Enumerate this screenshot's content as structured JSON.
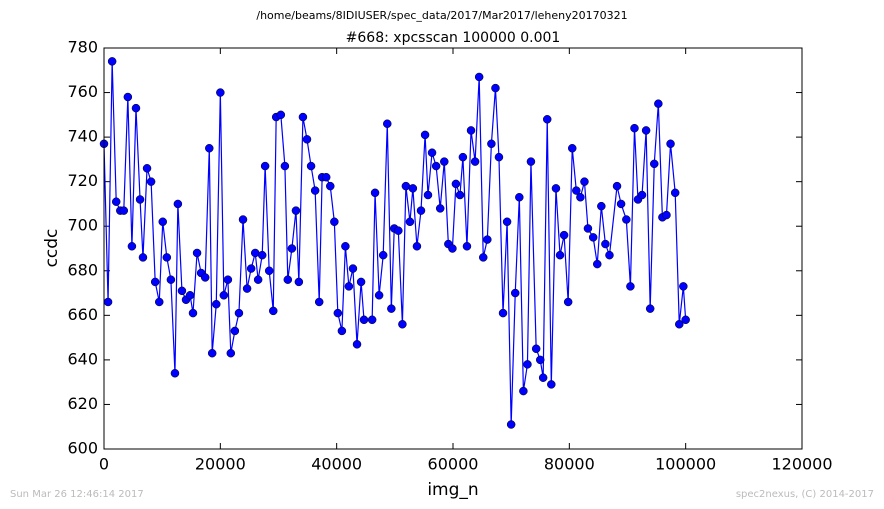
{
  "chart_data": {
    "type": "line",
    "suptitle": "/home/beams/8IDIUSER/spec_data/2017/Mar2017/leheny20170321",
    "title": "#668: xpcsscan 100000 0.001",
    "xlabel": "img_n",
    "ylabel": "ccdc",
    "footer_left": "Sun Mar 26 12:46:14 2017",
    "footer_right": "spec2nexus, (C) 2014-2017",
    "xlim": [
      0,
      120000
    ],
    "ylim": [
      600,
      780
    ],
    "xticks": [
      0,
      20000,
      40000,
      60000,
      80000,
      100000,
      120000
    ],
    "yticks": [
      600,
      620,
      640,
      660,
      680,
      700,
      720,
      740,
      760,
      780
    ],
    "series": [
      {
        "name": "ccdc",
        "color": "#0000ff",
        "x": [
          0,
          700,
          1400,
          2100,
          2800,
          3400,
          4100,
          4800,
          5500,
          6200,
          6700,
          7400,
          8100,
          8800,
          9500,
          10100,
          10800,
          11500,
          12200,
          12700,
          13400,
          14100,
          14800,
          15300,
          16000,
          16700,
          17400,
          18100,
          18600,
          19300,
          20000,
          20600,
          21300,
          21800,
          22500,
          23200,
          23900,
          24600,
          25300,
          26000,
          26500,
          27200,
          27700,
          28400,
          29100,
          29600,
          30400,
          31100,
          31600,
          32300,
          33000,
          33500,
          34200,
          34900,
          35600,
          36300,
          37000,
          37500,
          38200,
          38900,
          39600,
          40200,
          40900,
          41500,
          42100,
          42800,
          43500,
          44200,
          44700,
          46100,
          46600,
          47300,
          48000,
          48700,
          49400,
          49900,
          50600,
          51300,
          51900,
          52600,
          53100,
          53800,
          54500,
          55200,
          55700,
          56400,
          57100,
          57800,
          58500,
          59200,
          59900,
          60500,
          61200,
          61700,
          62400,
          63100,
          63800,
          64500,
          65200,
          65900,
          66600,
          67300,
          67900,
          68600,
          69300,
          70000,
          70700,
          71400,
          72100,
          72800,
          73400,
          74300,
          75000,
          75500,
          76200,
          76900,
          77700,
          78400,
          79100,
          79800,
          80500,
          81200,
          81900,
          82600,
          83200,
          84100,
          84800,
          85500,
          86200,
          86900,
          88200,
          88900,
          89800,
          90500,
          91200,
          91800,
          92500,
          93200,
          93900,
          94600,
          95300,
          96000,
          96700,
          97400,
          98200,
          98900,
          99600,
          100000
        ],
        "values": [
          737,
          666,
          774,
          711,
          707,
          707,
          758,
          691,
          753,
          712,
          686,
          726,
          720,
          675,
          666,
          702,
          686,
          676,
          634,
          710,
          671,
          667,
          669,
          661,
          688,
          679,
          677,
          735,
          643,
          665,
          760,
          669,
          676,
          643,
          653,
          661,
          703,
          672,
          681,
          688,
          676,
          687,
          727,
          680,
          662,
          749,
          750,
          727,
          676,
          690,
          707,
          675,
          749,
          739,
          727,
          716,
          666,
          722,
          722,
          718,
          702,
          661,
          653,
          691,
          673,
          681,
          647,
          675,
          658,
          658,
          715,
          669,
          687,
          746,
          663,
          699,
          698,
          656,
          718,
          702,
          717,
          691,
          707,
          741,
          714,
          733,
          727,
          708,
          729,
          692,
          690,
          719,
          714,
          731,
          691,
          743,
          729,
          767,
          686,
          694,
          737,
          762,
          731,
          661,
          702,
          611,
          670,
          713,
          626,
          638,
          729,
          645,
          640,
          632,
          748,
          629,
          717,
          687,
          696,
          666,
          735,
          716,
          713,
          720,
          699,
          695,
          683,
          709,
          692,
          687,
          718,
          710,
          703,
          673,
          744,
          712,
          714,
          743,
          663,
          728,
          755,
          704,
          705,
          737,
          715,
          656,
          673,
          658
        ]
      }
    ]
  }
}
